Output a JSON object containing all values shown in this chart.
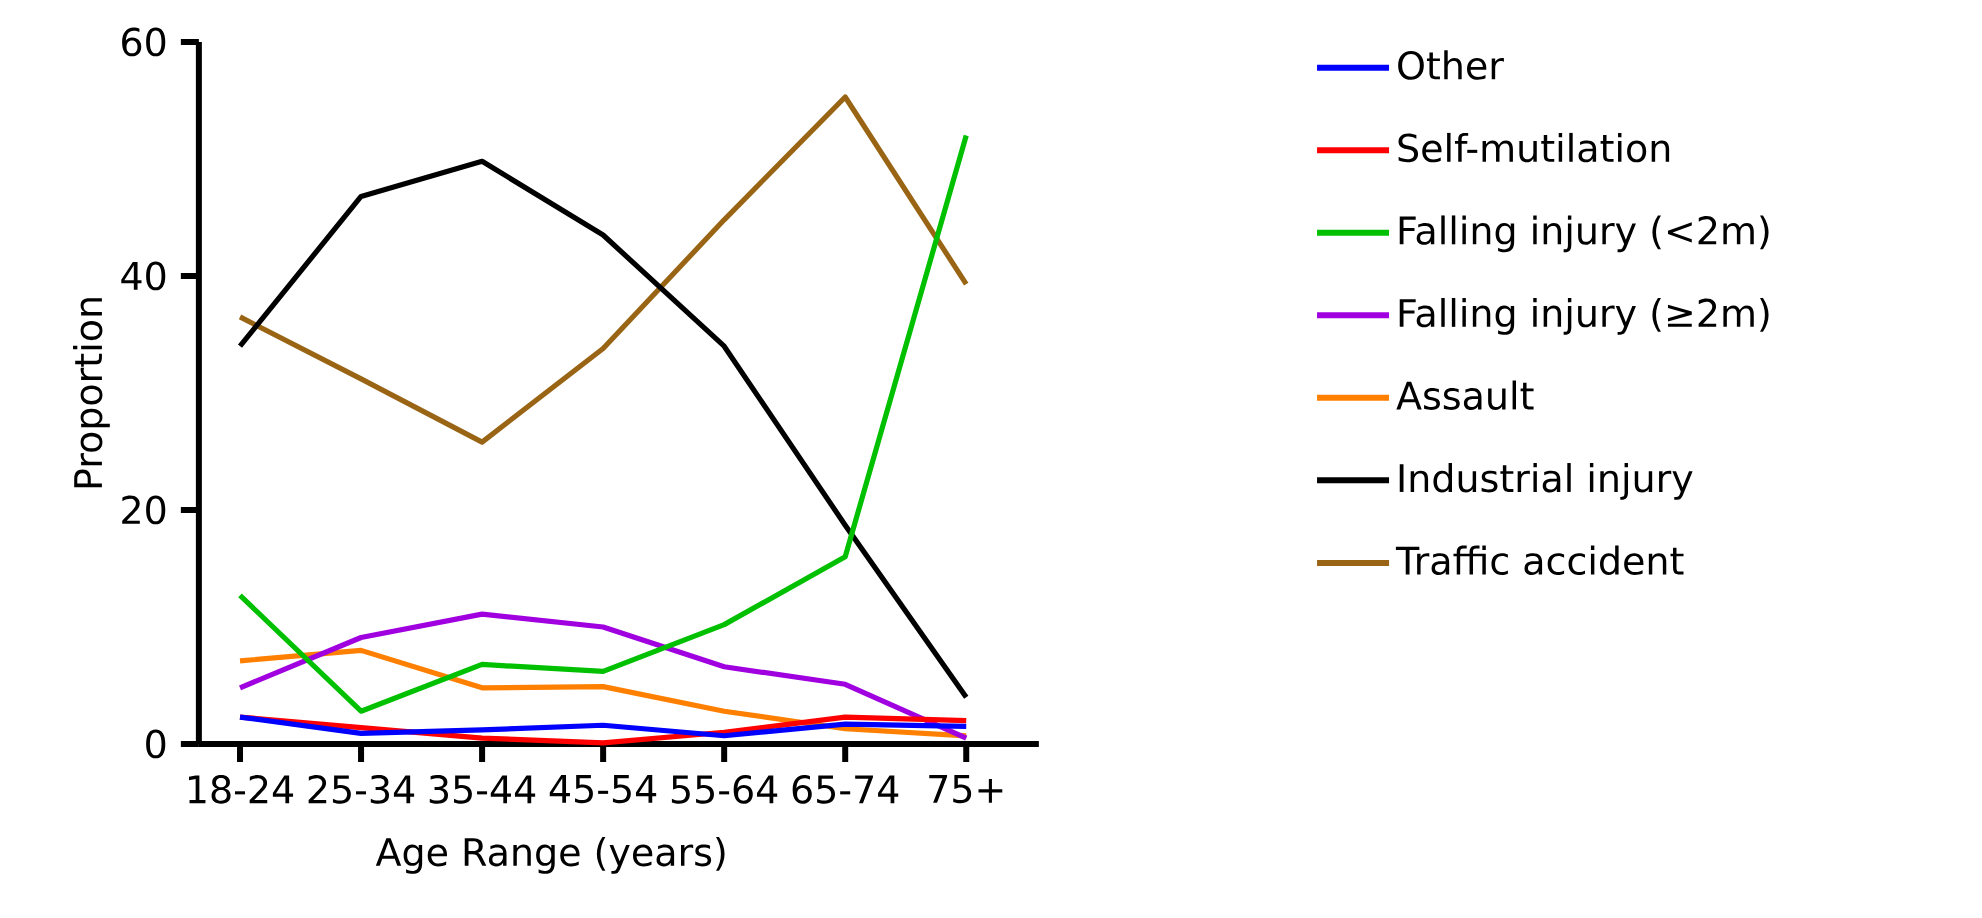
{
  "chart_data": {
    "type": "line",
    "xlabel": "Age Range (years)",
    "ylabel": "Proportion",
    "categories": [
      "18-24",
      "25-34",
      "35-44",
      "45-54",
      "55-64",
      "65-74",
      "75+"
    ],
    "ylim": [
      0,
      60
    ],
    "yticks": [
      0,
      20,
      40,
      60
    ],
    "legend": "right",
    "series": [
      {
        "name": "Other",
        "color": "#0000ff",
        "values": [
          2.3,
          0.9,
          1.2,
          1.6,
          0.7,
          1.7,
          1.5
        ]
      },
      {
        "name": "Self-mutilation",
        "color": "#ff0000",
        "values": [
          2.3,
          1.4,
          0.5,
          0.1,
          1.0,
          2.3,
          2.0
        ]
      },
      {
        "name": "Falling injury (<2m)",
        "color": "#00c000",
        "values": [
          12.7,
          2.8,
          6.8,
          6.2,
          10.2,
          16.0,
          52.0
        ]
      },
      {
        "name": "Falling injury (≥2m)",
        "color": "#a000e0",
        "values": [
          4.8,
          9.1,
          11.1,
          10.0,
          6.6,
          5.1,
          0.5
        ]
      },
      {
        "name": "Assault",
        "color": "#ff8000",
        "values": [
          7.1,
          8.0,
          4.8,
          4.9,
          2.8,
          1.3,
          0.7
        ]
      },
      {
        "name": "Industrial injury",
        "color": "#000000",
        "values": [
          34.0,
          46.8,
          49.8,
          43.5,
          34.0,
          18.7,
          4.0
        ]
      },
      {
        "name": "Traffic accident",
        "color": "#996515",
        "values": [
          36.5,
          31.2,
          25.8,
          33.8,
          44.8,
          55.3,
          39.3
        ]
      }
    ]
  }
}
